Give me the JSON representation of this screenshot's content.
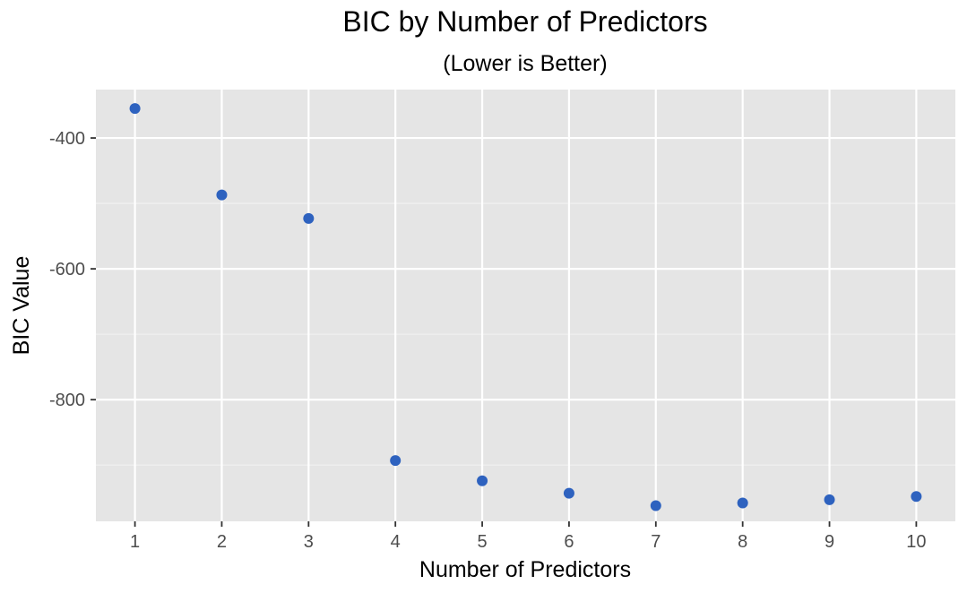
{
  "chart_data": {
    "type": "scatter",
    "title": "BIC by Number of Predictors",
    "subtitle": "(Lower is Better)",
    "xlabel": "Number of Predictors",
    "ylabel": "BIC Value",
    "x": [
      1,
      2,
      3,
      4,
      5,
      6,
      7,
      8,
      9,
      10
    ],
    "y": [
      -355,
      -487,
      -523,
      -893,
      -924,
      -943,
      -962,
      -958,
      -953,
      -948
    ],
    "x_ticks": [
      "1",
      "2",
      "3",
      "4",
      "5",
      "6",
      "7",
      "8",
      "9",
      "10"
    ],
    "y_ticks": [
      -400,
      -600,
      -800
    ],
    "y_tick_labels": [
      "-400",
      "-600",
      "-800"
    ],
    "xlim": [
      0.55,
      10.45
    ],
    "ylim": [
      -986,
      -326
    ],
    "grid": true,
    "legend": "none"
  },
  "colors": {
    "point": "#2e62bf",
    "panel_background": "#e5e5e5",
    "grid_major": "#ffffff",
    "grid_minor": "#f2f2f2",
    "tick_text": "#4d4d4d"
  }
}
